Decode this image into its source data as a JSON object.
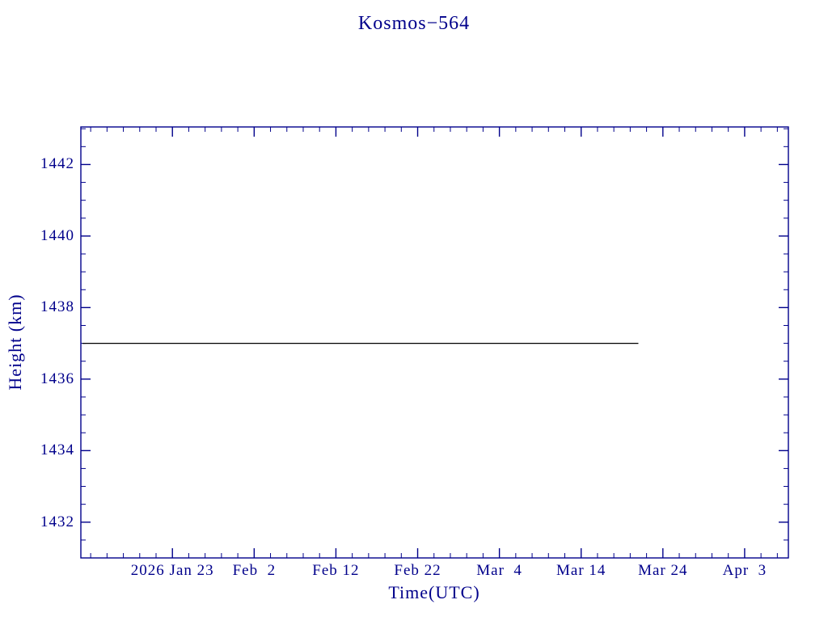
{
  "page": {
    "background": "#ffffff"
  },
  "chart_data": {
    "type": "line",
    "title": "Kosmos−564",
    "xlabel": "Time(UTC)",
    "ylabel": "Height (km)",
    "axis_color": "#00008B",
    "line_color": "#000000",
    "grid": false,
    "legend": "none",
    "x_unit": "day-of-year 2026",
    "xlim": [
      11.8,
      98.35
    ],
    "ylim": [
      1431.0,
      1443.05
    ],
    "x_ticks": [
      {
        "day": 23,
        "label": "2026 Jan 23"
      },
      {
        "day": 33,
        "label": "Feb  2"
      },
      {
        "day": 43,
        "label": "Feb 12"
      },
      {
        "day": 53,
        "label": "Feb 22"
      },
      {
        "day": 63,
        "label": "Mar  4"
      },
      {
        "day": 73,
        "label": "Mar 14"
      },
      {
        "day": 83,
        "label": "Mar 24"
      },
      {
        "day": 93,
        "label": "Apr  3"
      }
    ],
    "x_minor_step_days": 2,
    "y_ticks": [
      {
        "value": 1442,
        "label": "1442"
      },
      {
        "value": 1440,
        "label": "1440"
      },
      {
        "value": 1438,
        "label": "1438"
      },
      {
        "value": 1436,
        "label": "1436"
      },
      {
        "value": 1434,
        "label": "1434"
      },
      {
        "value": 1432,
        "label": "1432"
      }
    ],
    "y_minor_step": 0.5,
    "series": [
      {
        "name": "height",
        "color": "#000000",
        "points": [
          {
            "day": 12,
            "date": "2026 Jan 12",
            "height_km": 1437.0
          },
          {
            "day": 80,
            "date": "2026 Mar 21",
            "height_km": 1437.0
          }
        ]
      }
    ]
  }
}
